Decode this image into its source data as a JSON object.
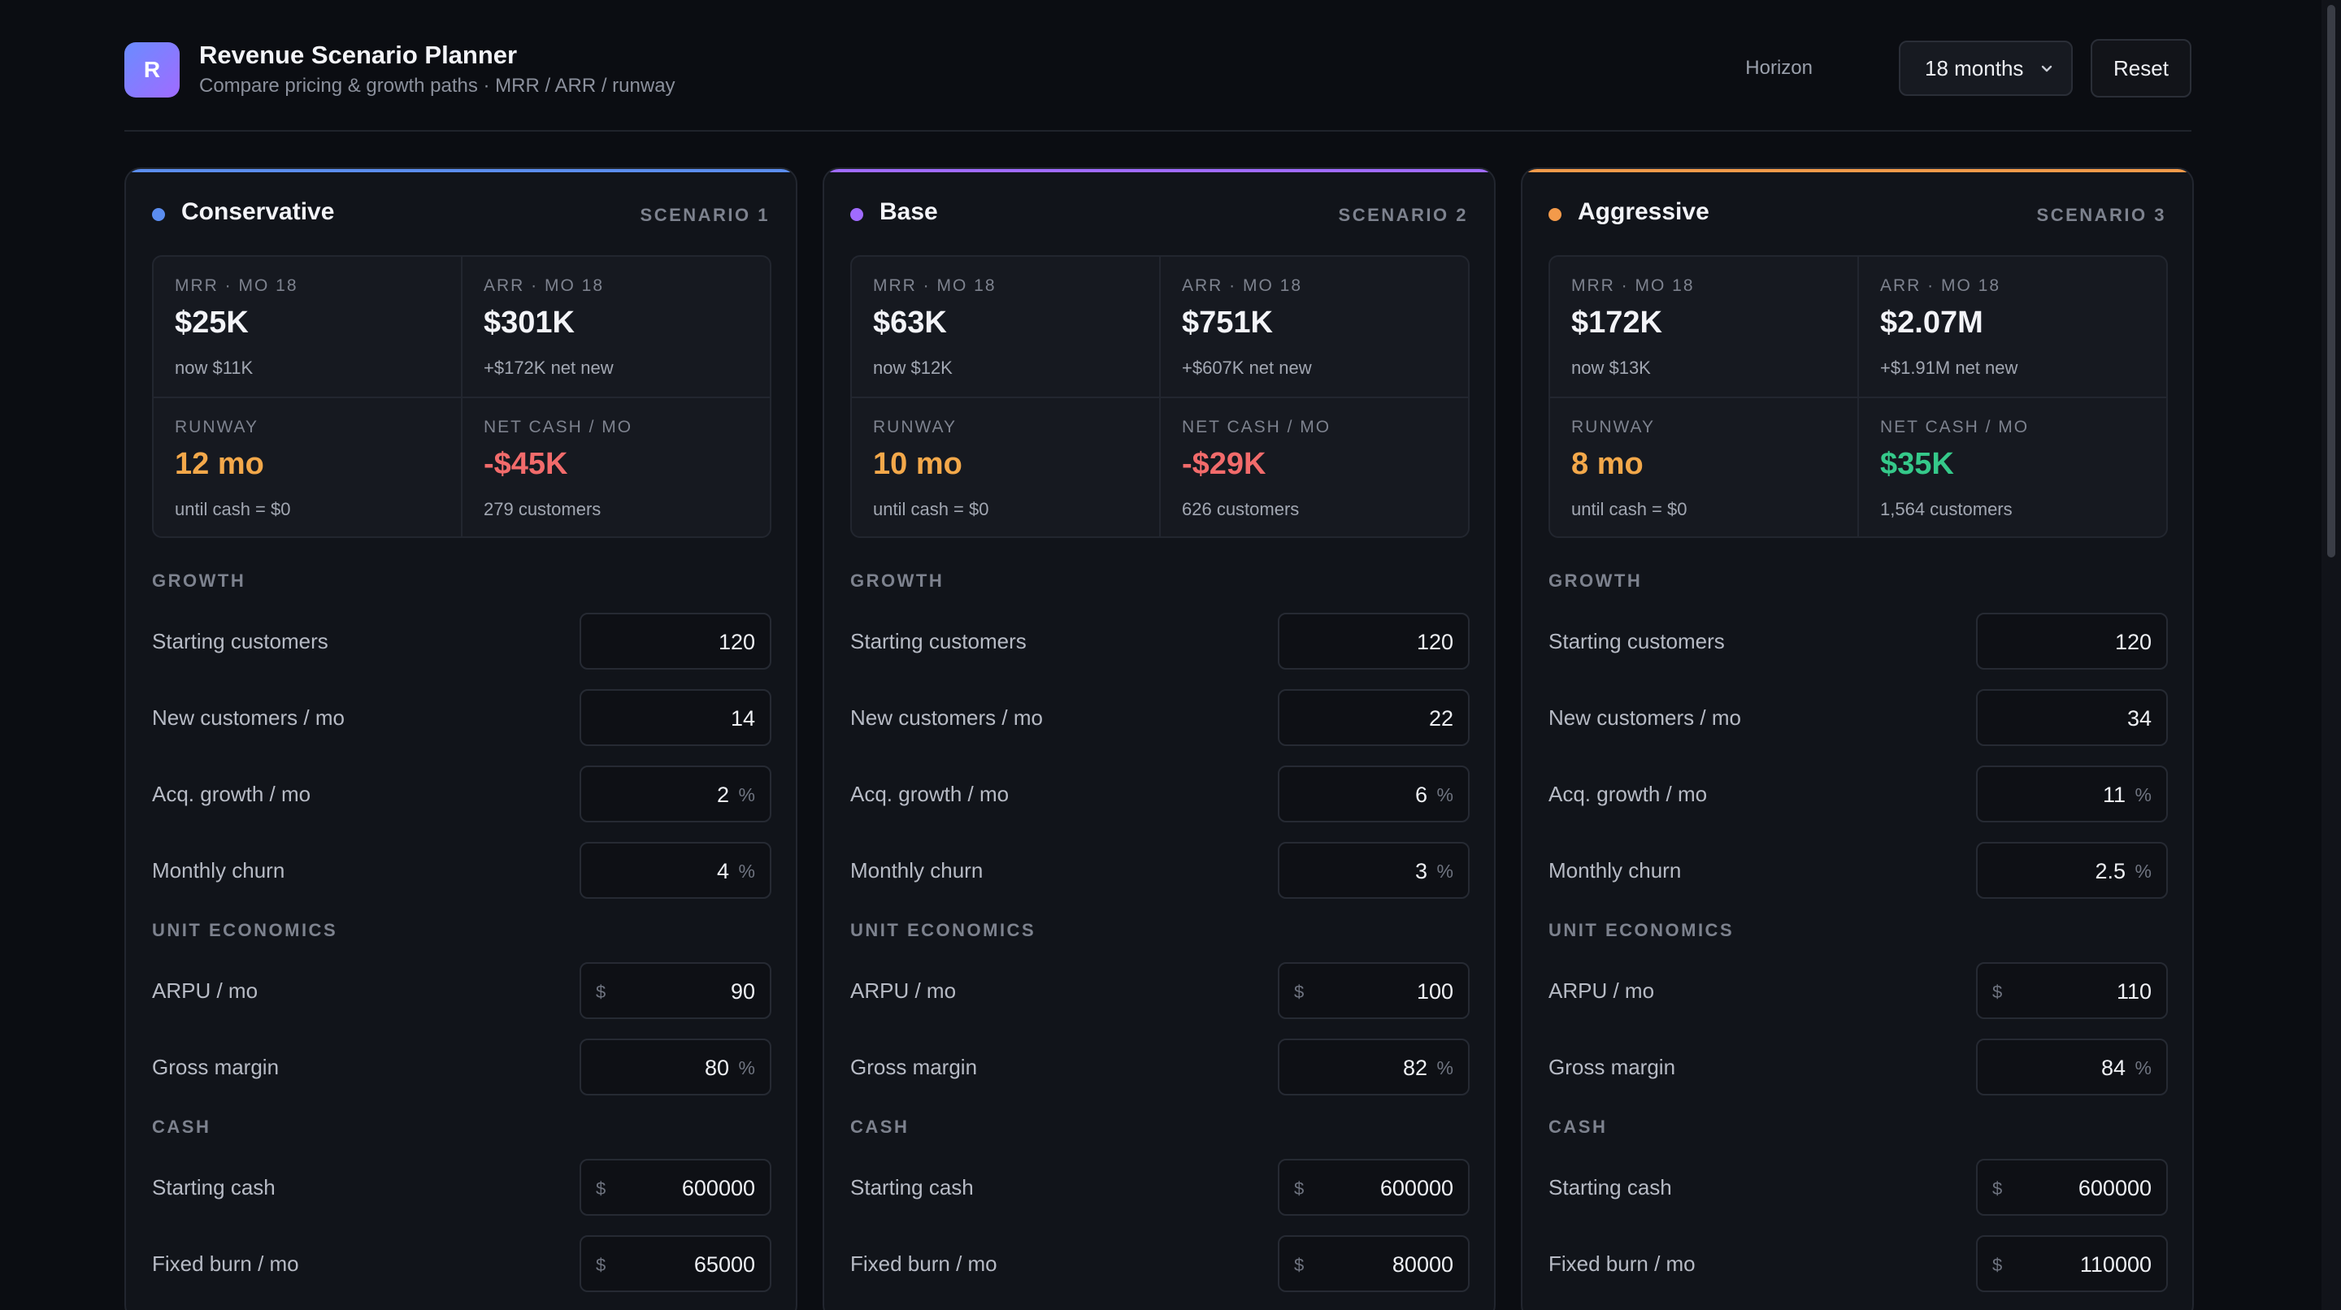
{
  "app": {
    "logo_letter": "R",
    "title": "Revenue Scenario Planner",
    "subtitle": "Compare pricing & growth paths · MRR / ARR / runway"
  },
  "header": {
    "horizon_label": "Horizon",
    "horizon_value": "18 months",
    "reset_label": "Reset"
  },
  "labels": {
    "growth_section": "GROWTH",
    "unit_section": "UNIT ECONOMICS",
    "cash_section": "CASH",
    "starting_customers": "Starting customers",
    "new_customers": "New customers / mo",
    "acq_growth": "Acq. growth / mo",
    "monthly_churn": "Monthly churn",
    "arpu": "ARPU / mo",
    "gross_margin": "Gross margin",
    "starting_cash": "Starting cash",
    "fixed_burn": "Fixed burn / mo",
    "percent": "%",
    "dollar": "$"
  },
  "colors": {
    "conservative": "#5b8def",
    "base": "#a06bff",
    "aggressive": "#f39a4a",
    "warning": "#f3a84a",
    "negative": "#f26b6b",
    "positive": "#35c98a"
  },
  "scenarios": [
    {
      "name": "Conservative",
      "tag": "SCENARIO 1",
      "mrr_label": "MRR · MO 18",
      "mrr_value": "$25K",
      "mrr_sub": "now $11K",
      "arr_label": "ARR · MO 18",
      "arr_value": "$301K",
      "arr_sub": "+$172K net new",
      "runway_label": "RUNWAY",
      "runway_value": "12 mo",
      "runway_sub": "until cash = $0",
      "net_label": "NET CASH / MO",
      "net_value": "-$45K",
      "net_sub": "279 customers",
      "starting_customers": "120",
      "new_customers": "14",
      "acq_growth": "2",
      "monthly_churn": "4",
      "arpu": "90",
      "gross_margin": "80",
      "starting_cash": "600000",
      "fixed_burn": "65000"
    },
    {
      "name": "Base",
      "tag": "SCENARIO 2",
      "mrr_label": "MRR · MO 18",
      "mrr_value": "$63K",
      "mrr_sub": "now $12K",
      "arr_label": "ARR · MO 18",
      "arr_value": "$751K",
      "arr_sub": "+$607K net new",
      "runway_label": "RUNWAY",
      "runway_value": "10 mo",
      "runway_sub": "until cash = $0",
      "net_label": "NET CASH / MO",
      "net_value": "-$29K",
      "net_sub": "626 customers",
      "starting_customers": "120",
      "new_customers": "22",
      "acq_growth": "6",
      "monthly_churn": "3",
      "arpu": "100",
      "gross_margin": "82",
      "starting_cash": "600000",
      "fixed_burn": "80000"
    },
    {
      "name": "Aggressive",
      "tag": "SCENARIO 3",
      "mrr_label": "MRR · MO 18",
      "mrr_value": "$172K",
      "mrr_sub": "now $13K",
      "arr_label": "ARR · MO 18",
      "arr_value": "$2.07M",
      "arr_sub": "+$1.91M net new",
      "runway_label": "RUNWAY",
      "runway_value": "8 mo",
      "runway_sub": "until cash = $0",
      "net_label": "NET CASH / MO",
      "net_value": "$35K",
      "net_sub": "1,564 customers",
      "starting_customers": "120",
      "new_customers": "34",
      "acq_growth": "11",
      "monthly_churn": "2.5",
      "arpu": "110",
      "gross_margin": "84",
      "starting_cash": "600000",
      "fixed_burn": "110000"
    }
  ]
}
